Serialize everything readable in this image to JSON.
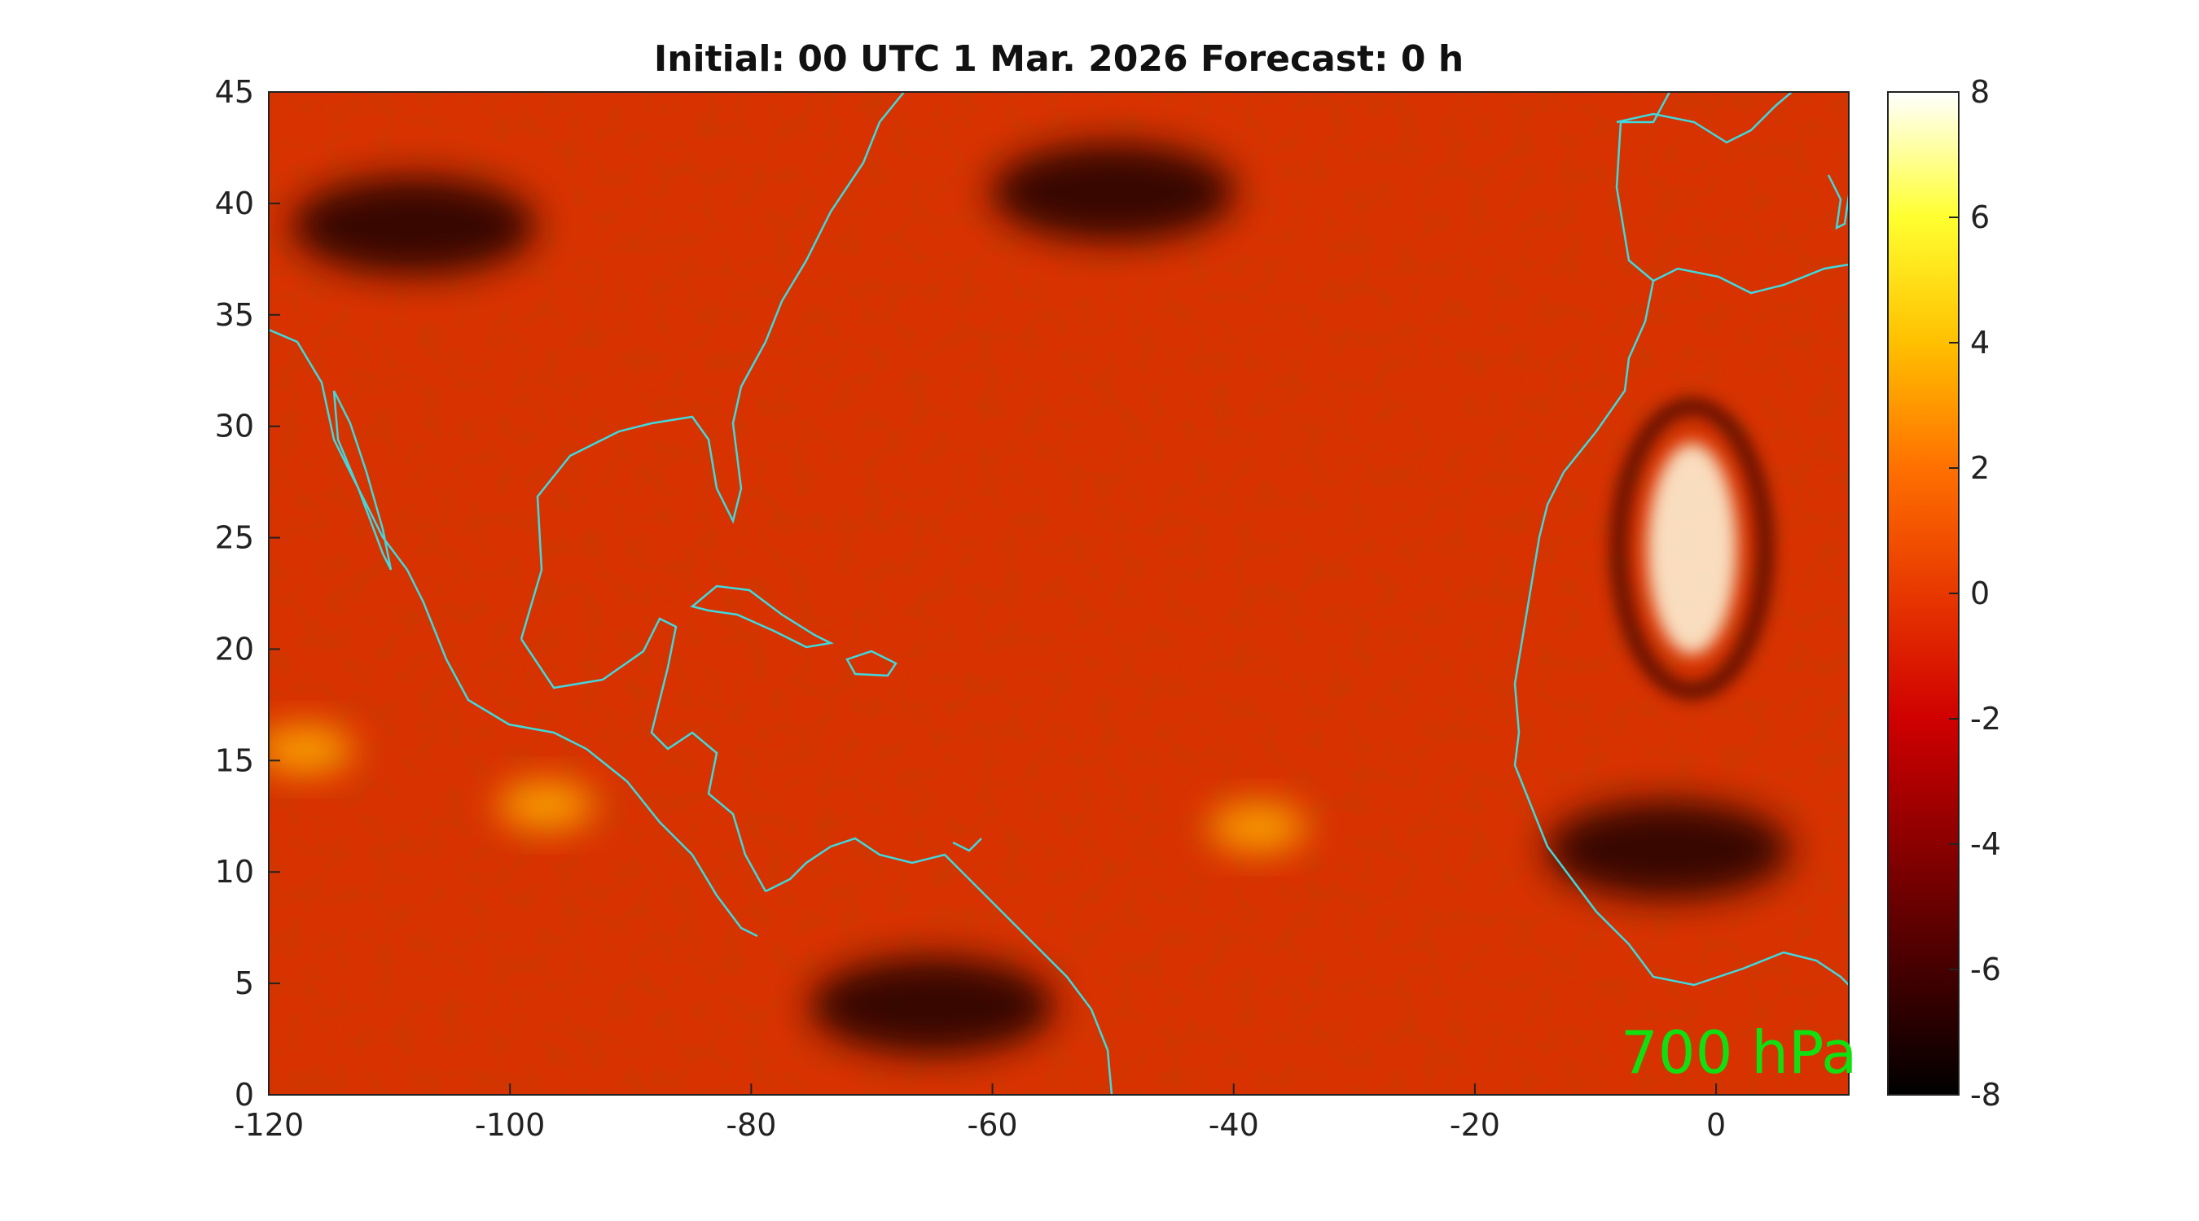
{
  "chart_data": {
    "type": "heatmap",
    "title": "Initial: 00 UTC 1 Mar. 2026 Forecast: 0 h",
    "xlabel": "",
    "ylabel": "",
    "xlim": [
      -120,
      11
    ],
    "ylim": [
      0,
      45
    ],
    "x_ticks": [
      "-120",
      "-100",
      "-80",
      "-60",
      "-40",
      "-20",
      "0"
    ],
    "y_ticks": [
      "0",
      "5",
      "10",
      "15",
      "20",
      "25",
      "30",
      "35",
      "40",
      "45"
    ],
    "colorbar": {
      "range": [
        -8,
        8
      ],
      "ticks": [
        "-8",
        "-6",
        "-4",
        "-2",
        "0",
        "2",
        "4",
        "6",
        "8"
      ],
      "colormap": "hot"
    },
    "annotation": "700 hPa",
    "coastline_color": "#3fd9e0",
    "features": [
      {
        "name": "bright maximum",
        "lon": -2,
        "lat": 24.5,
        "value": 7.5
      },
      {
        "name": "bright patch",
        "lon": -97,
        "lat": 13,
        "value": 4
      },
      {
        "name": "bright patch",
        "lon": -38,
        "lat": 12,
        "value": 3
      },
      {
        "name": "bright patch",
        "lon": -117,
        "lat": 15.5,
        "value": 3
      },
      {
        "name": "dark band",
        "lon": -50,
        "lat": 40.5,
        "value": -7
      },
      {
        "name": "dark band",
        "lon": -108,
        "lat": 39,
        "value": -6
      },
      {
        "name": "dark patch",
        "lon": -4,
        "lat": 11,
        "value": -6.5
      },
      {
        "name": "dark patch",
        "lon": -65,
        "lat": 4,
        "value": -6
      }
    ]
  },
  "colors": {
    "background_field": "#d83000",
    "annotation_color": "#10e010"
  }
}
